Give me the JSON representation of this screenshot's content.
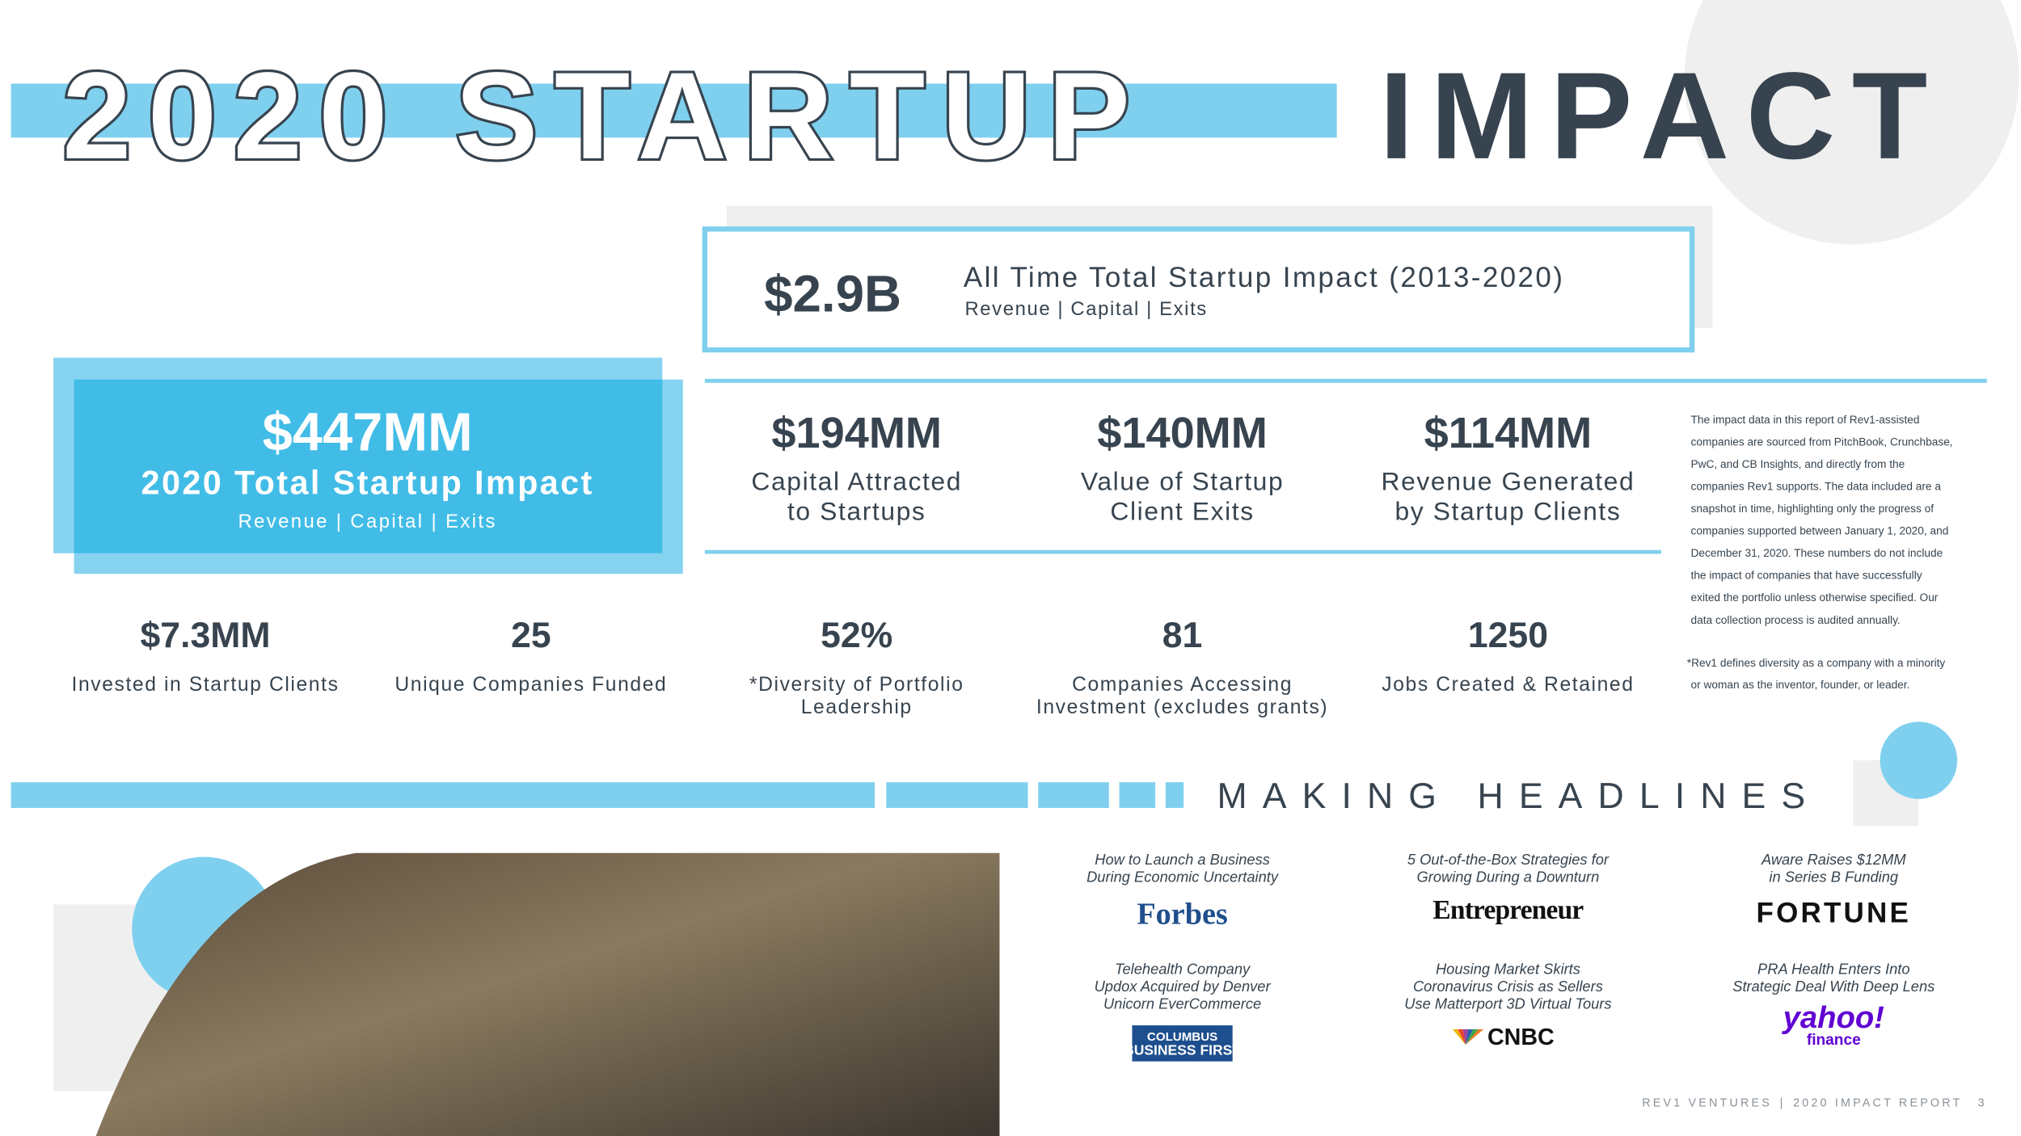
{
  "header": {
    "title_outline": "2020 STARTUP",
    "title_solid": "IMPACT"
  },
  "all_time": {
    "value": "$2.9B",
    "label": "All Time Total Startup Impact (2013-2020)",
    "sub": "Revenue | Capital | Exits"
  },
  "total": {
    "value": "$447MM",
    "label": "2020 Total Startup Impact",
    "sub": "Revenue | Capital | Exits"
  },
  "metrics": [
    {
      "value": "$194MM",
      "label": [
        "Capital Attracted",
        "to Startups"
      ]
    },
    {
      "value": "$140MM",
      "label": [
        "Value of Startup",
        "Client Exits"
      ]
    },
    {
      "value": "$114MM",
      "label": [
        "Revenue Generated",
        "by Startup Clients"
      ]
    }
  ],
  "stats": [
    {
      "value": "$7.3MM",
      "label": [
        "Invested in Startup Clients"
      ]
    },
    {
      "value": "25",
      "label": [
        "Unique Companies Funded"
      ]
    },
    {
      "value": "52%",
      "label": [
        "*Diversity of Portfolio",
        "Leadership"
      ]
    },
    {
      "value": "81",
      "label": [
        "Companies Accessing",
        "Investment (excludes grants)"
      ]
    },
    {
      "value": "1250",
      "label": [
        "Jobs Created & Retained"
      ]
    }
  ],
  "notes": {
    "methodology": [
      "The impact data in this report of Rev1-assisted",
      "companies are sourced from PitchBook, Crunchbase,",
      "PwC, and CB Insights, and directly from the",
      "companies Rev1 supports. The data included are a",
      "snapshot in time, highlighting only the progress of",
      "companies supported between January 1, 2020, and",
      "December 31, 2020. These numbers do not include",
      "the impact of companies that have successfully",
      "exited the portfolio unless otherwise specified. Our",
      "data collection process is audited annually."
    ],
    "diversity": [
      "*Rev1 defines diversity as a company with a minority",
      "or woman as the inventor, founder, or leader."
    ]
  },
  "headlines": {
    "title": "MAKING HEADLINES",
    "items": [
      {
        "headline": [
          "How to Launch a Business",
          "During Economic Uncertainty"
        ],
        "outlet": [
          "Forbes"
        ]
      },
      {
        "headline": [
          "5 Out-of-the-Box Strategies for",
          "Growing During a Downturn"
        ],
        "outlet": [
          "Entrepreneur"
        ]
      },
      {
        "headline": [
          "Aware Raises $12MM",
          "in Series B Funding"
        ],
        "outlet": [
          "FORTUNE"
        ]
      },
      {
        "headline": [
          "Telehealth Company",
          "Updox Acquired by Denver",
          "Unicorn EverCommerce"
        ],
        "outlet": [
          "COLUMBUS",
          "BUSINESS FIRST"
        ]
      },
      {
        "headline": [
          "Housing Market Skirts",
          "Coronavirus Crisis as Sellers",
          "Use Matterport 3D Virtual Tours"
        ],
        "outlet": [
          "CNBC"
        ]
      },
      {
        "headline": [
          "PRA Health Enters Into",
          "Strategic Deal With Deep Lens"
        ],
        "outlet": [
          "yahoo!",
          "finance"
        ]
      }
    ]
  },
  "footer": {
    "left": "REV1 VENTURES",
    "separator": "|",
    "right": "2020 IMPACT REPORT",
    "page": "3"
  }
}
